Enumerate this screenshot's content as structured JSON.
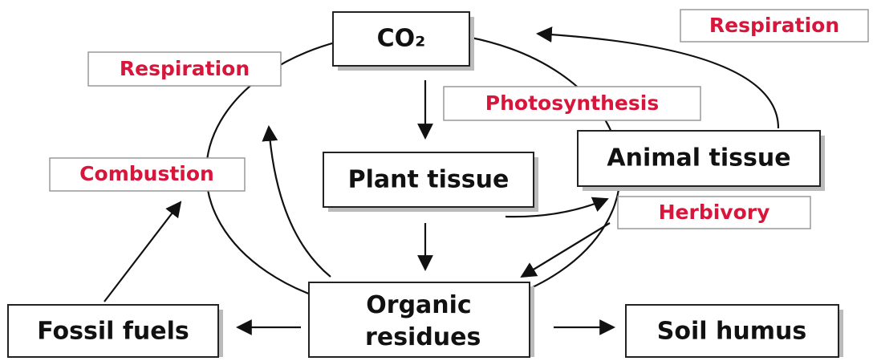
{
  "nodes": [
    {
      "label": "CO₂"
    },
    {
      "label": "Plant tissue"
    },
    {
      "label": "Animal tissue"
    },
    {
      "label": "Organic residues"
    },
    {
      "label": "Fossil fuels"
    },
    {
      "label": "Soil humus"
    }
  ],
  "processes": [
    {
      "label": "Respiration"
    },
    {
      "label": "Respiration"
    },
    {
      "label": "Photosynthesis"
    },
    {
      "label": "Combustion"
    },
    {
      "label": "Herbivory"
    }
  ]
}
